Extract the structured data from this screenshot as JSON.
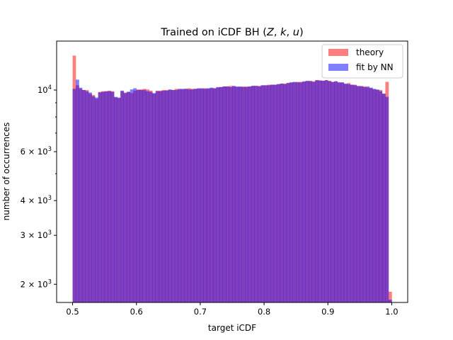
{
  "chart_data": {
    "type": "bar",
    "title": "Trained on iCDF BH (Z, k, u)",
    "title_parts": {
      "prefix": "Trained on iCDF BH (",
      "z": "Z",
      "sep1": ", ",
      "k": "k",
      "sep2": ", ",
      "u": "u",
      "suffix": ")"
    },
    "xlabel": "target iCDF",
    "ylabel": "number of occurrences",
    "y_scale": "log",
    "xlim": [
      0.475,
      1.025
    ],
    "ylim": [
      1720,
      15000
    ],
    "x_ticks": [
      0.5,
      0.6,
      0.7,
      0.8,
      0.9,
      1.0
    ],
    "x_tick_labels": [
      "0.5",
      "0.6",
      "0.7",
      "0.8",
      "0.9",
      "1.0"
    ],
    "y_ticks": [
      {
        "value": 2000,
        "base": "2",
        "exp": "3"
      },
      {
        "value": 3000,
        "base": "3",
        "exp": "3"
      },
      {
        "value": 4000,
        "base": "4",
        "exp": "3"
      },
      {
        "value": 6000,
        "base": "6",
        "exp": "3"
      },
      {
        "value": 10000,
        "base": "",
        "exp": "4"
      }
    ],
    "y_minor_ticks": [
      5000,
      7000,
      8000,
      9000
    ],
    "bins": {
      "start": 0.5,
      "end": 1.0,
      "count": 100
    },
    "legend_position": "top-right",
    "series": [
      {
        "name": "theory",
        "color": "#ff0000",
        "alpha": 0.5,
        "values": [
          13300,
          10400,
          10100,
          10000,
          10000,
          9700,
          9600,
          9300,
          9850,
          9900,
          9900,
          9950,
          9900,
          9400,
          9350,
          9900,
          9800,
          9850,
          9750,
          9950,
          10050,
          10050,
          10100,
          10050,
          9950,
          9700,
          9950,
          9950,
          10000,
          10000,
          10000,
          10000,
          10100,
          10050,
          10050,
          10100,
          10150,
          10100,
          10100,
          10100,
          10100,
          10150,
          10100,
          10150,
          10150,
          10200,
          10250,
          10300,
          10300,
          10350,
          10300,
          10250,
          10250,
          10300,
          10300,
          10300,
          10350,
          10350,
          10350,
          10400,
          10400,
          10450,
          10450,
          10450,
          10500,
          10550,
          10550,
          10600,
          10650,
          10650,
          10700,
          10700,
          10700,
          10750,
          10800,
          10750,
          10850,
          10850,
          10800,
          10850,
          10800,
          10700,
          10750,
          10650,
          10650,
          10500,
          10600,
          10450,
          10450,
          10300,
          10350,
          10300,
          10200,
          10150,
          10050,
          10000,
          10000,
          9700,
          10700,
          1880
        ]
      },
      {
        "name": "fit by NN",
        "color": "#0000ff",
        "alpha": 0.5,
        "values": [
          10100,
          10900,
          10200,
          10000,
          9900,
          9800,
          9500,
          9400,
          9800,
          9850,
          9900,
          9900,
          9850,
          9450,
          9400,
          9950,
          9750,
          9850,
          10050,
          10150,
          10000,
          10000,
          10000,
          9900,
          9850,
          9750,
          9900,
          9900,
          9950,
          9950,
          10050,
          10000,
          10000,
          10100,
          10100,
          10100,
          10050,
          10050,
          10100,
          10150,
          10150,
          10100,
          10150,
          10200,
          10150,
          10250,
          10250,
          10300,
          10300,
          10250,
          10350,
          10300,
          10300,
          10250,
          10250,
          10300,
          10350,
          10350,
          10300,
          10400,
          10400,
          10400,
          10450,
          10450,
          10500,
          10550,
          10500,
          10600,
          10650,
          10700,
          10650,
          10650,
          10750,
          10800,
          10750,
          10700,
          10850,
          10800,
          10800,
          10850,
          10750,
          10700,
          10750,
          10650,
          10650,
          10550,
          10500,
          10450,
          10400,
          10350,
          10300,
          10250,
          10300,
          10200,
          10100,
          10050,
          9900,
          9700,
          9450,
          1760
        ]
      }
    ]
  }
}
